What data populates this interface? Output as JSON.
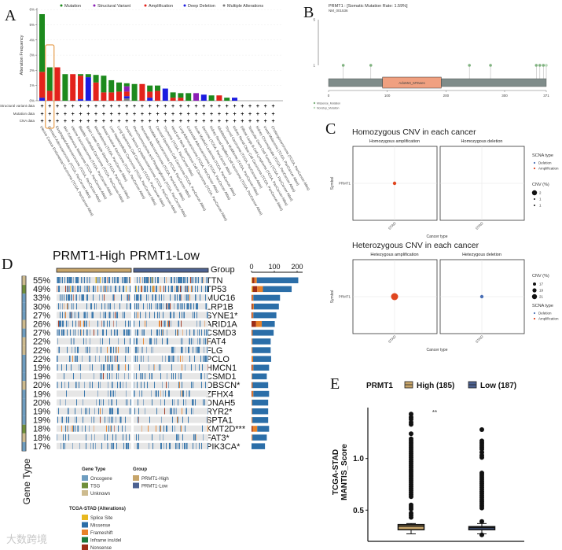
{
  "panel_labels": {
    "a": "A",
    "b": "B",
    "c": "C",
    "d": "D",
    "e": "E"
  },
  "watermark": "大数跨境",
  "colors": {
    "mutation": "#1d8a1d",
    "structural_variant": "#8a1fb5",
    "amplification": "#e3221b",
    "deep_deletion": "#1c1ce0",
    "multiple": "#7a7a7a",
    "missense": "#2b6ea8",
    "frameshift": "#e8822a",
    "nonsense": "#9e2e17",
    "inframe": "#1d7a3c",
    "splice": "#e8b820",
    "oncogene": "#6e9dc0",
    "tsg": "#6f8f3a",
    "unknown": "#cdbb8f",
    "high": "#c7a56a",
    "low": "#4d6291",
    "protein": "#7f8c8a",
    "domain": "#f0a080",
    "highlight": "#e08a2a"
  },
  "chart_data": [
    {
      "type": "bar",
      "title": "",
      "ylabel": "Alteration Frequency",
      "ylim": [
        0,
        6
      ],
      "y_ticks": [
        "0%",
        "1%",
        "2%",
        "3%",
        "4%",
        "5%",
        "6%"
      ],
      "legend": [
        "Mutation",
        "Structural Variant",
        "Amplification",
        "Deep Deletion",
        "Multiple Alterations"
      ],
      "legend_placement": "top",
      "annotation_rows": [
        "Structural variant data",
        "Mutation data",
        "CNA data"
      ],
      "highlighted_category": "Stomach Adenocarcinoma (TCGA, PanCancer Atlas)",
      "categories": [
        "Uterine Corpus Endometrial Carcinoma (TCGA, PanCancer Atlas)",
        "Stomach Adenocarcinoma (TCGA, PanCancer Atlas)",
        "Esophageal Adenocarcinoma (TCGA, PanCancer Atlas)",
        "Skin Cutaneous Melanoma (TCGA, PanCancer Atlas)",
        "Uterine Carcinosarcoma (TCGA, PanCancer Atlas)",
        "Bladder Urothelial Carcinoma (TCGA, PanCancer Atlas)",
        "Brain Lower Grade Glioma (TCGA, PanCancer Atlas)",
        "Mesothelioma (TCGA, PanCancer Atlas)",
        "Breast Invasive Carcinoma (TCGA, PanCancer Atlas)",
        "Liver Hepatocellular Carcinoma (TCGA, PanCancer Atlas)",
        "Lung Squamous Cell Carcinoma (TCGA, PanCancer Atlas)",
        "Ovarian Serous Cystadenocarcinoma (TCGA, PanCancer Atlas)",
        "Pheochromocytoma and Paraganglioma (TCGA, PanCancer Atlas)",
        "Pancreatic Adenocarcinoma (TCGA, PanCancer Atlas)",
        "Prostate Adenocarcinoma (TCGA, PanCancer Atlas)",
        "Cervical Squamous Cell Carcinoma (TCGA, PanCancer Atlas)",
        "Thymoma (TCGA, PanCancer Atlas)",
        "Head and Neck Squamous Cell Carcinoma (TCGA, PanCancer Atlas)",
        "Lung Adenocarcinoma (TCGA, PanCancer Atlas)",
        "Colorectal Adenocarcinoma (TCGA, PanCancer Atlas)",
        "Acute Myeloid Leukemia (TCGA, PanCancer Atlas)",
        "Sarcoma (TCGA, PanCancer Atlas)",
        "Kidney Renal Papillary Cell Carcinoma (TCGA, PanCancer Atlas)",
        "Glioblastoma Multiforme (TCGA, PanCancer Atlas)",
        "Thyroid Carcinoma (TCGA, PanCancer Atlas)",
        "Kidney Renal Clear Cell Carcinoma (TCGA, PanCancer Atlas)",
        "Diffuse Large B-Cell Lymphoma (TCGA, PanCancer Atlas)",
        "Testicular Germ Cell Tumors (TCGA, PanCancer Atlas)",
        "Kidney Chromophobe (TCGA, PanCancer Atlas)",
        "Uveal Melanoma (TCGA, PanCancer Atlas)",
        "Cholangiocarcinoma (TCGA, PanCancer Atlas)"
      ],
      "series": [
        {
          "name": "Multiple Alterations",
          "key": "multiple",
          "values": [
            0,
            0,
            0,
            0,
            0,
            0,
            0,
            0,
            0,
            0,
            0,
            0.15,
            0,
            0,
            0,
            0,
            0,
            0,
            0,
            0,
            0,
            0,
            0,
            0,
            0,
            0,
            0,
            0,
            0,
            0,
            0
          ]
        },
        {
          "name": "Deep Deletion",
          "key": "deep_deletion",
          "values": [
            0.2,
            0,
            0,
            0,
            0,
            0.1,
            1.55,
            0,
            0,
            0,
            0,
            0.15,
            0,
            0,
            0.2,
            0,
            0.8,
            0,
            0,
            0,
            0,
            0.4,
            0,
            0,
            0,
            0.2,
            0,
            0,
            0,
            0,
            0
          ]
        },
        {
          "name": "Amplification",
          "key": "amplification",
          "values": [
            1.7,
            0.65,
            2.2,
            0,
            1.75,
            1.55,
            0,
            1.2,
            0.55,
            0.55,
            0.6,
            0.3,
            0,
            1.1,
            0.4,
            0.65,
            0,
            0.2,
            0.2,
            0,
            0,
            0,
            0,
            0.35,
            0,
            0,
            0,
            0,
            0,
            0,
            0
          ]
        },
        {
          "name": "Structural Variant",
          "key": "structural_variant",
          "values": [
            0,
            0,
            0,
            0,
            0,
            0,
            0,
            0,
            0,
            0,
            0,
            0.35,
            0,
            0,
            0,
            0,
            0,
            0,
            0,
            0,
            0.5,
            0,
            0,
            0,
            0,
            0,
            0,
            0,
            0,
            0,
            0
          ]
        },
        {
          "name": "Mutation",
          "key": "mutation",
          "values": [
            3.8,
            1.55,
            0,
            1.75,
            0,
            0.1,
            0.2,
            0.5,
            1.1,
            0.8,
            0.6,
            0.2,
            1.1,
            0,
            0.4,
            0.35,
            0,
            0.35,
            0.3,
            0.5,
            0,
            0,
            0.35,
            0,
            0.2,
            0,
            0,
            0,
            0,
            0,
            0
          ]
        }
      ]
    },
    {
      "type": "lollipop",
      "title": "PRMT1 : [Somatic Mutation Rate: 1.59%]",
      "subtitle": "NM_001536",
      "y_ticks": [
        "1",
        "5"
      ],
      "x_ticks": [
        "0",
        "100",
        "200",
        "300",
        "371"
      ],
      "protein_length": 371,
      "domain": {
        "name": "AdoMet_MTases",
        "start": 92,
        "end": 192
      },
      "mutations": [
        {
          "pos": 25,
          "count": 1,
          "type": "Missense_Mutation"
        },
        {
          "pos": 72,
          "count": 1,
          "type": "Missense_Mutation"
        },
        {
          "pos": 240,
          "count": 1,
          "type": "Missense_Mutation"
        },
        {
          "pos": 276,
          "count": 1,
          "type": "Missense_Mutation"
        },
        {
          "pos": 354,
          "count": 1,
          "type": "Missense_Mutation"
        },
        {
          "pos": 360,
          "count": 1,
          "type": "Missense_Mutation"
        },
        {
          "pos": 366,
          "count": 1,
          "type": "Missense_Mutation"
        },
        {
          "pos": 371,
          "count": 1,
          "type": "Nonstop_Mutation"
        }
      ],
      "legend": [
        "Missense_Mutation",
        "Nonstop_Mutation"
      ]
    },
    {
      "type": "scatter",
      "title": "Homozygous CNV in each cancer",
      "facets": [
        "Homozygous amplification",
        "Homozygous deletion"
      ],
      "ylabel": "Symbol",
      "xlabel": "Cancer type",
      "y_categories": [
        "PRMT1"
      ],
      "x_categories": [
        "STAD"
      ],
      "points": [
        {
          "facet": 0,
          "x": "STAD",
          "y": "PRMT1",
          "cnv": 2,
          "type": "Amplification"
        }
      ],
      "legend_scna_title": "SCNA type",
      "legend_scna": [
        "Deletion",
        "Amplification"
      ],
      "legend_cnv_title": "CNV (%)",
      "legend_cnv": [
        "2",
        "1",
        "1"
      ]
    },
    {
      "type": "scatter",
      "title": "Heterozygous CNV in each cancer",
      "facets": [
        "Hetezygous amplification",
        "Hetezygous deletion"
      ],
      "ylabel": "Symbol",
      "xlabel": "Cancer type",
      "y_categories": [
        "PRMT1"
      ],
      "x_categories": [
        "STAD"
      ],
      "points": [
        {
          "facet": 0,
          "x": "STAD",
          "y": "PRMT1",
          "cnv": 21,
          "type": "Amplification"
        },
        {
          "facet": 1,
          "x": "STAD",
          "y": "PRMT1",
          "cnv": 17,
          "type": "Deletion"
        }
      ],
      "legend_scna_title": "SCNA type",
      "legend_scna": [
        "Deletion",
        "Amplification"
      ],
      "legend_cnv_title": "CNV (%)",
      "legend_cnv": [
        "17",
        "19",
        "21"
      ]
    },
    {
      "type": "oncoprint",
      "group_titles": [
        "PRMT1-High",
        "PRMT1-Low"
      ],
      "group_label": "Group",
      "gene_type_label": "Gene Type",
      "bar_ticks": [
        "0",
        "100",
        "200"
      ],
      "genes": [
        {
          "name": "TTN",
          "pct": "55%",
          "freq": 0.55,
          "gtype": "unknown",
          "counts": {
            "splice": 3,
            "nonsense": 10,
            "frameshift": 10,
            "missense": 182
          }
        },
        {
          "name": "TP53",
          "pct": "49%",
          "freq": 0.49,
          "gtype": "tsg",
          "counts": {
            "splice": 5,
            "nonsense": 20,
            "frameshift": 25,
            "missense": 126
          }
        },
        {
          "name": "MUC16",
          "pct": "33%",
          "freq": 0.33,
          "gtype": "oncogene",
          "counts": {
            "splice": 0,
            "nonsense": 3,
            "frameshift": 5,
            "missense": 117
          }
        },
        {
          "name": "LRP1B",
          "pct": "30%",
          "freq": 0.3,
          "gtype": "oncogene",
          "counts": {
            "splice": 0,
            "nonsense": 5,
            "frameshift": 5,
            "missense": 110
          }
        },
        {
          "name": "SYNE1*",
          "pct": "27%",
          "freq": 0.27,
          "gtype": "oncogene",
          "counts": {
            "splice": 0,
            "nonsense": 4,
            "frameshift": 4,
            "missense": 101
          }
        },
        {
          "name": "ARID1A",
          "pct": "26%",
          "freq": 0.26,
          "gtype": "unknown",
          "counts": {
            "splice": 0,
            "nonsense": 20,
            "frameshift": 25,
            "missense": 57
          }
        },
        {
          "name": "CSMD3",
          "pct": "27%",
          "freq": 0.27,
          "gtype": "oncogene",
          "counts": {
            "splice": 0,
            "nonsense": 2,
            "frameshift": 3,
            "missense": 92
          }
        },
        {
          "name": "FAT4",
          "pct": "22%",
          "freq": 0.22,
          "gtype": "unknown",
          "counts": {
            "splice": 0,
            "nonsense": 1,
            "frameshift": 3,
            "missense": 80
          }
        },
        {
          "name": "FLG",
          "pct": "22%",
          "freq": 0.22,
          "gtype": "unknown",
          "counts": {
            "splice": 0,
            "nonsense": 1,
            "frameshift": 3,
            "missense": 80
          }
        },
        {
          "name": "PCLO",
          "pct": "22%",
          "freq": 0.22,
          "gtype": "oncogene",
          "counts": {
            "splice": 0,
            "nonsense": 1,
            "frameshift": 6,
            "missense": 79
          }
        },
        {
          "name": "HMCN1",
          "pct": "19%",
          "freq": 0.19,
          "gtype": "oncogene",
          "counts": {
            "splice": 0,
            "nonsense": 4,
            "frameshift": 4,
            "missense": 69
          }
        },
        {
          "name": "CSMD1",
          "pct": "19%",
          "freq": 0.19,
          "gtype": "oncogene",
          "counts": {
            "splice": 0,
            "nonsense": 1,
            "frameshift": 2,
            "missense": 64
          }
        },
        {
          "name": "OBSCN*",
          "pct": "20%",
          "freq": 0.2,
          "gtype": "unknown",
          "counts": {
            "splice": 0,
            "nonsense": 2,
            "frameshift": 3,
            "missense": 68
          }
        },
        {
          "name": "ZFHX4",
          "pct": "19%",
          "freq": 0.19,
          "gtype": "oncogene",
          "counts": {
            "splice": 0,
            "nonsense": 3,
            "frameshift": 5,
            "missense": 69
          }
        },
        {
          "name": "DNAH5",
          "pct": "20%",
          "freq": 0.2,
          "gtype": "oncogene",
          "counts": {
            "splice": 0,
            "nonsense": 1,
            "frameshift": 2,
            "missense": 70
          }
        },
        {
          "name": "RYR2*",
          "pct": "19%",
          "freq": 0.19,
          "gtype": "oncogene",
          "counts": {
            "splice": 0,
            "nonsense": 1,
            "frameshift": 2,
            "missense": 70
          }
        },
        {
          "name": "SPTA1",
          "pct": "19%",
          "freq": 0.19,
          "gtype": "oncogene",
          "counts": {
            "splice": 0,
            "nonsense": 1,
            "frameshift": 3,
            "missense": 69
          }
        },
        {
          "name": "KMT2D***",
          "pct": "18%",
          "freq": 0.18,
          "gtype": "tsg",
          "counts": {
            "splice": 0,
            "nonsense": 5,
            "frameshift": 20,
            "missense": 52
          }
        },
        {
          "name": "FAT3*",
          "pct": "18%",
          "freq": 0.18,
          "gtype": "unknown",
          "counts": {
            "splice": 0,
            "nonsense": 1,
            "frameshift": 3,
            "missense": 63
          }
        },
        {
          "name": "PIK3CA*",
          "pct": "17%",
          "freq": 0.17,
          "gtype": "oncogene",
          "counts": {
            "splice": 0,
            "nonsense": 0,
            "frameshift": 0,
            "missense": 59
          }
        }
      ],
      "legend_gene_type_title": "Gene Type",
      "legend_gene_type": [
        {
          "key": "oncogene",
          "label": "Oncogene"
        },
        {
          "key": "tsg",
          "label": "TSG"
        },
        {
          "key": "unknown",
          "label": "Unknown"
        }
      ],
      "legend_group_title": "Group",
      "legend_group": [
        {
          "key": "high",
          "label": "PRMT1-High"
        },
        {
          "key": "low",
          "label": "PRMT1-Low"
        }
      ],
      "legend_alt_title": "TCGA-STAD (Alterations)",
      "legend_alt": [
        {
          "key": "splice",
          "label": "Splice Site"
        },
        {
          "key": "missense",
          "label": "Missense"
        },
        {
          "key": "frameshift",
          "label": "Frameshift"
        },
        {
          "key": "inframe",
          "label": "Inframe ins/del"
        },
        {
          "key": "nonsense",
          "label": "Nonsense"
        }
      ]
    },
    {
      "type": "box",
      "legend_title": "PRMT1",
      "legend": [
        {
          "key": "high",
          "label": "High (185)"
        },
        {
          "key": "low",
          "label": "Low (187)"
        }
      ],
      "ylabel_lines": [
        "TCGA-STAD",
        "MANTIS_Score"
      ],
      "y_ticks": [
        {
          "v": 0.5,
          "label": "0.5"
        },
        {
          "v": 1.0,
          "label": "1.0"
        }
      ],
      "significance": "**",
      "groups": [
        {
          "key": "high",
          "q1": 0.31,
          "median": 0.345,
          "q3": 0.36,
          "whisker_low": 0.27,
          "whisker_high": 0.37,
          "outliers": [
            0.43,
            0.45,
            0.47,
            0.51,
            0.53,
            0.55,
            0.63,
            0.65,
            0.67,
            0.69,
            0.71,
            0.73,
            0.75,
            0.77,
            0.79,
            0.81,
            0.83,
            0.85,
            0.87,
            0.89,
            0.91,
            0.93,
            0.95,
            0.97,
            0.99,
            1.01,
            1.03,
            1.05,
            1.07,
            1.09,
            1.11,
            1.13,
            1.15,
            1.17,
            1.19,
            1.24,
            1.33,
            1.35,
            1.38,
            1.4,
            1.43
          ]
        },
        {
          "key": "low",
          "q1": 0.31,
          "median": 0.33,
          "q3": 0.34,
          "whisker_low": 0.27,
          "whisker_high": 0.37,
          "outliers": [
            0.26,
            0.39,
            0.52,
            0.54,
            0.56,
            0.58,
            0.6,
            0.62,
            0.64,
            0.66,
            0.68,
            0.7,
            0.72,
            0.74,
            0.76,
            0.78,
            0.8,
            0.82,
            0.84,
            0.86,
            1.01,
            1.03,
            1.06,
            1.09,
            1.11,
            1.13,
            1.15,
            1.17,
            1.28
          ]
        }
      ]
    }
  ]
}
